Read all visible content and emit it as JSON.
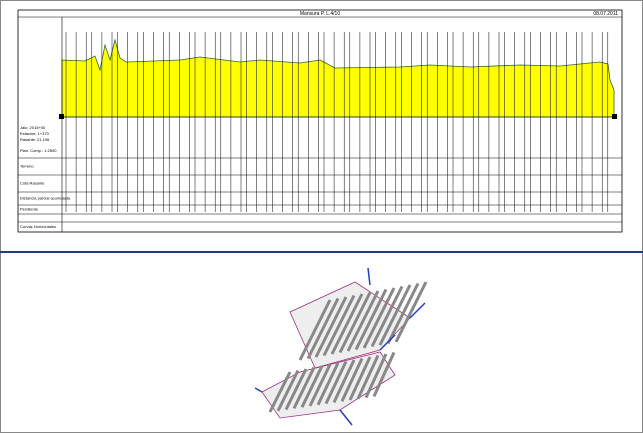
{
  "header": {
    "title": "Mansura P. L.4/10",
    "date": "08.07.2011"
  },
  "profile": {
    "info": [
      "Jalo: 2015+00",
      "Estacion: 1+370",
      "Rasante: 21.196"
    ],
    "plan": "Plan. Comp.: 1:2500"
  },
  "rows": [
    "Terreno",
    "Cota Rasante",
    "Distancia parcial acumulada",
    "Pendiente",
    "Curvas Horizontales"
  ]
}
